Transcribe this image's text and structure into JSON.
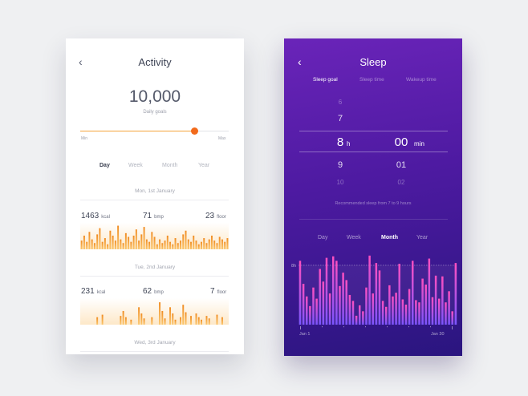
{
  "activity": {
    "title": "Activity",
    "goal_value": "10,000",
    "goal_label": "Daily goals",
    "slider": {
      "min_label": "Min",
      "max_label": "Max",
      "level": 0.77
    },
    "tabs": [
      {
        "label": "Day",
        "active": true
      },
      {
        "label": "Week",
        "active": false
      },
      {
        "label": "Month",
        "active": false
      },
      {
        "label": "Year",
        "active": false
      }
    ],
    "days": [
      {
        "date": "Mon, 1st January",
        "kcal": "1463",
        "kcal_unit": "kcal",
        "bmp": "71",
        "bmp_unit": "bmp",
        "floor": "23",
        "floor_unit": "floor",
        "bars": [
          0.35,
          0.55,
          0.3,
          0.7,
          0.4,
          0.25,
          0.6,
          0.85,
          0.3,
          0.45,
          0.2,
          0.75,
          0.55,
          0.35,
          0.95,
          0.4,
          0.25,
          0.65,
          0.5,
          0.3,
          0.55,
          0.8,
          0.35,
          0.6,
          0.9,
          0.4,
          0.3,
          0.7,
          0.5,
          0.2,
          0.4,
          0.25,
          0.35,
          0.55,
          0.3,
          0.2,
          0.45,
          0.25,
          0.35,
          0.6,
          0.75,
          0.4,
          0.3,
          0.55,
          0.35,
          0.2,
          0.3,
          0.45,
          0.25,
          0.4,
          0.55,
          0.35,
          0.25,
          0.5,
          0.4,
          0.3,
          0.45
        ]
      },
      {
        "date": "Tue, 2nd January",
        "kcal": "231",
        "kcal_unit": "kcal",
        "bmp": "62",
        "bmp_unit": "bmp",
        "floor": "7",
        "floor_unit": "floor",
        "bars": [
          0,
          0,
          0,
          0,
          0,
          0,
          0.3,
          0,
          0.4,
          0,
          0,
          0,
          0,
          0,
          0,
          0.35,
          0.55,
          0.3,
          0,
          0.2,
          0,
          0,
          0.7,
          0.45,
          0.25,
          0,
          0,
          0.3,
          0,
          0,
          0.9,
          0.55,
          0.25,
          0,
          0.7,
          0.45,
          0.2,
          0,
          0.3,
          0.8,
          0.5,
          0,
          0.35,
          0,
          0.45,
          0.3,
          0.2,
          0,
          0.35,
          0.25,
          0,
          0,
          0.4,
          0,
          0.3,
          0,
          0
        ]
      }
    ],
    "next_date": "Wed, 3rd January",
    "colors": {
      "bar_light": "#fbc76d",
      "bar_dark": "#f08c22",
      "slider": "#f26a1b"
    }
  },
  "sleep": {
    "title": "Sleep",
    "tabs": [
      {
        "label": "Sleep goal",
        "active": true
      },
      {
        "label": "Sleep time",
        "active": false
      },
      {
        "label": "Wakeup time",
        "active": false
      }
    ],
    "hours": {
      "above2": "6",
      "above1": "7",
      "selected": "8",
      "below1": "9",
      "below2": "10",
      "unit": "h"
    },
    "minutes": {
      "selected": "00",
      "below1": "01",
      "below2": "02",
      "unit": "min"
    },
    "recommendation": "Recommended sleep from 7 to 9 hours",
    "period_tabs": [
      {
        "label": "Day",
        "active": false
      },
      {
        "label": "Week",
        "active": false
      },
      {
        "label": "Month",
        "active": true
      },
      {
        "label": "Year",
        "active": false
      }
    ],
    "chart": {
      "goal_label": "8h",
      "x_start": "Jan 1",
      "x_end": "Jan 30",
      "values": [
        8.6,
        5.5,
        3.8,
        2.5,
        5.0,
        3.5,
        7.5,
        5.8,
        9.0,
        4.2,
        9.2,
        8.6,
        5.2,
        7.0,
        6.0,
        4.0,
        3.2,
        1.2,
        2.6,
        1.8,
        5.0,
        9.3,
        4.2,
        8.3,
        7.3,
        3.2,
        2.4,
        5.3,
        3.8,
        4.3,
        8.2,
        3.4,
        2.7,
        4.8,
        8.6,
        3.3,
        3.0,
        6.2,
        5.4,
        8.9,
        3.7,
        6.6,
        3.5,
        6.5,
        3.0,
        4.5,
        1.8,
        8.3
      ],
      "colors": {
        "bar_top": "#ff4fc0",
        "bar_bottom": "#7a55ff"
      }
    }
  }
}
